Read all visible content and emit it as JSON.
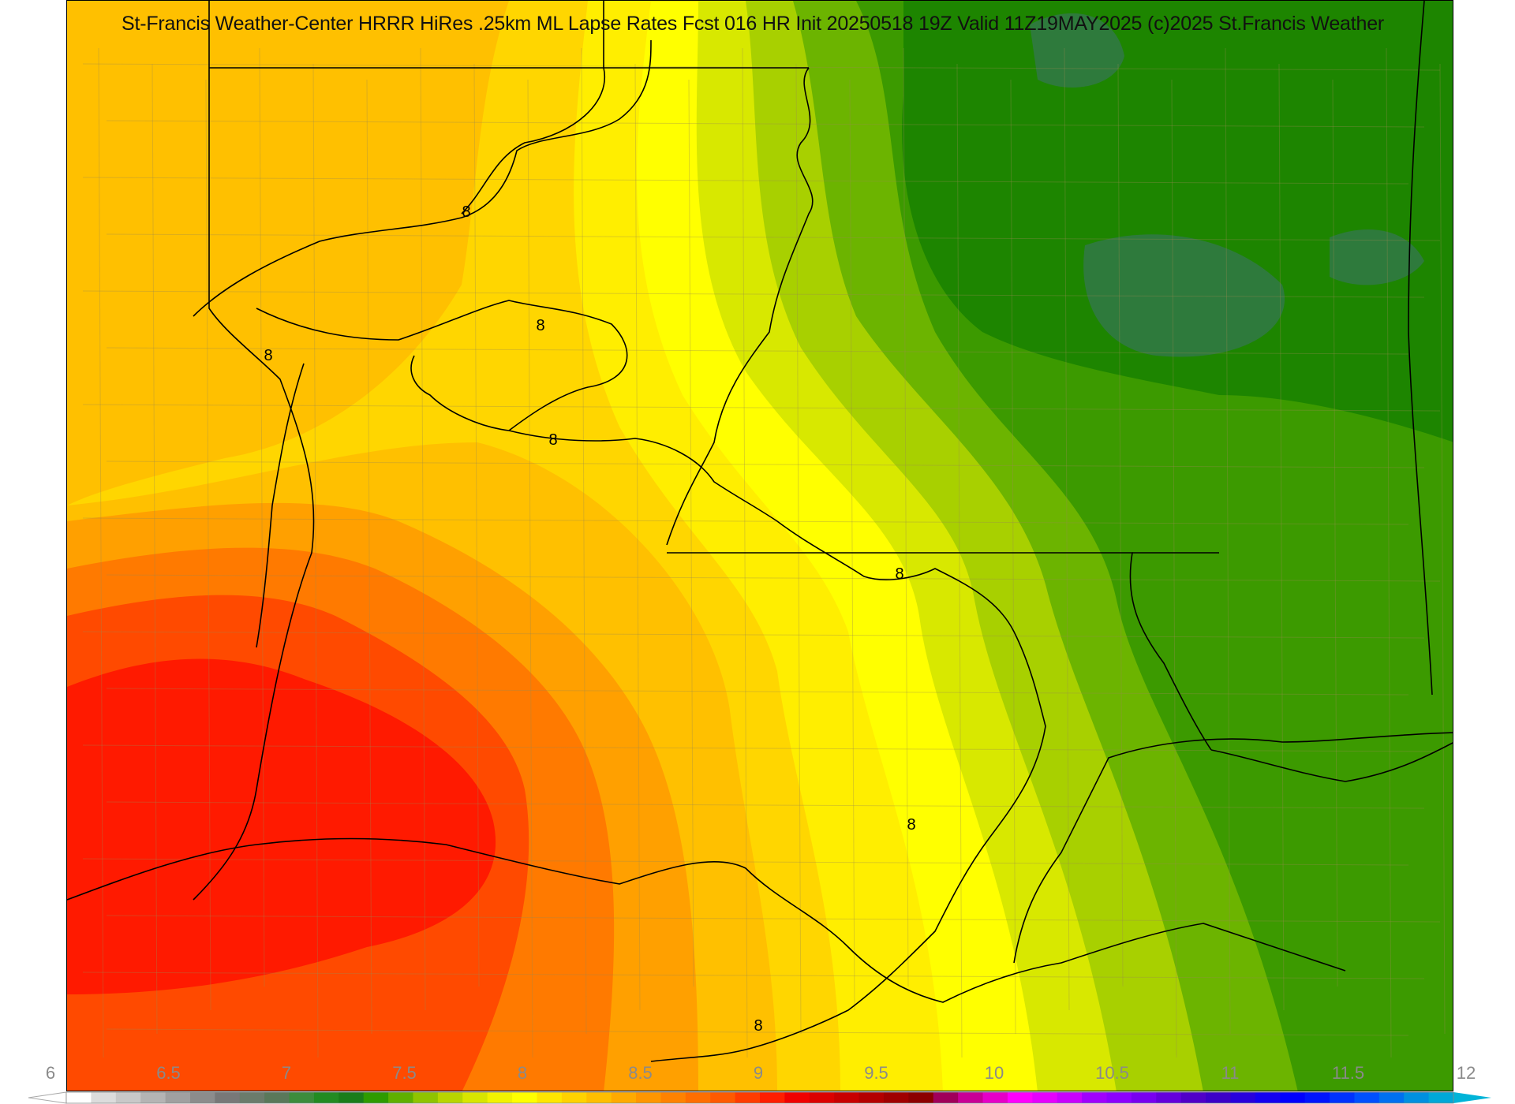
{
  "title": "St-Francis Weather-Center HRRR HiRes .25km ML Lapse Rates  Fcst 016 HR Init 20250518 19Z  Valid 11Z19MAY2025    (c)2025 St.Francis Weather",
  "contour_label": "8",
  "colorbar": {
    "min": 6,
    "max": 12,
    "ticks": [
      "6",
      "6.5",
      "7",
      "7.5",
      "8",
      "8.5",
      "9",
      "9.5",
      "10",
      "10.5",
      "11",
      "11.5",
      "12"
    ],
    "colors": [
      "#ffffff",
      "#dcdcdc",
      "#c8c8c8",
      "#b4b4b4",
      "#a0a0a0",
      "#8c8c8c",
      "#787878",
      "#6b7b6b",
      "#5a785a",
      "#3c8c3c",
      "#228b22",
      "#1a7d1a",
      "#2e9b00",
      "#5fb000",
      "#8fc400",
      "#b8d600",
      "#d8e600",
      "#f2f200",
      "#ffff00",
      "#ffe600",
      "#ffd200",
      "#ffbe00",
      "#ffaa00",
      "#ff9600",
      "#ff8200",
      "#ff6e00",
      "#ff5a00",
      "#ff3c00",
      "#ff1e00",
      "#f00000",
      "#dc0000",
      "#c80000",
      "#b40000",
      "#a00000",
      "#8c0000",
      "#a0005a",
      "#c80096",
      "#e600c8",
      "#ff00ff",
      "#e600ff",
      "#c800ff",
      "#a000ff",
      "#8c00ff",
      "#7800f0",
      "#6400dc",
      "#5000c8",
      "#3c00c8",
      "#2800dc",
      "#1400f0",
      "#0000ff",
      "#0014ff",
      "#0032ff",
      "#0050ff",
      "#0070f0",
      "#0090e0",
      "#00a8d8"
    ]
  },
  "field_colors": {
    "red": "#ff1a00",
    "red_orange": "#ff4a00",
    "orange": "#ff7a00",
    "amber": "#ffa000",
    "gold": "#ffc000",
    "yellow_gold": "#ffd600",
    "yellow": "#ffee00",
    "bright_yellow": "#ffff00",
    "yellow_green": "#d8e800",
    "light_green": "#a8d000",
    "green": "#6cb400",
    "mid_green": "#3c9a00",
    "dark_green": "#1d8500",
    "deep_green": "#2e7a3c"
  },
  "contour_color": "#000000",
  "border_color": "#000000"
}
